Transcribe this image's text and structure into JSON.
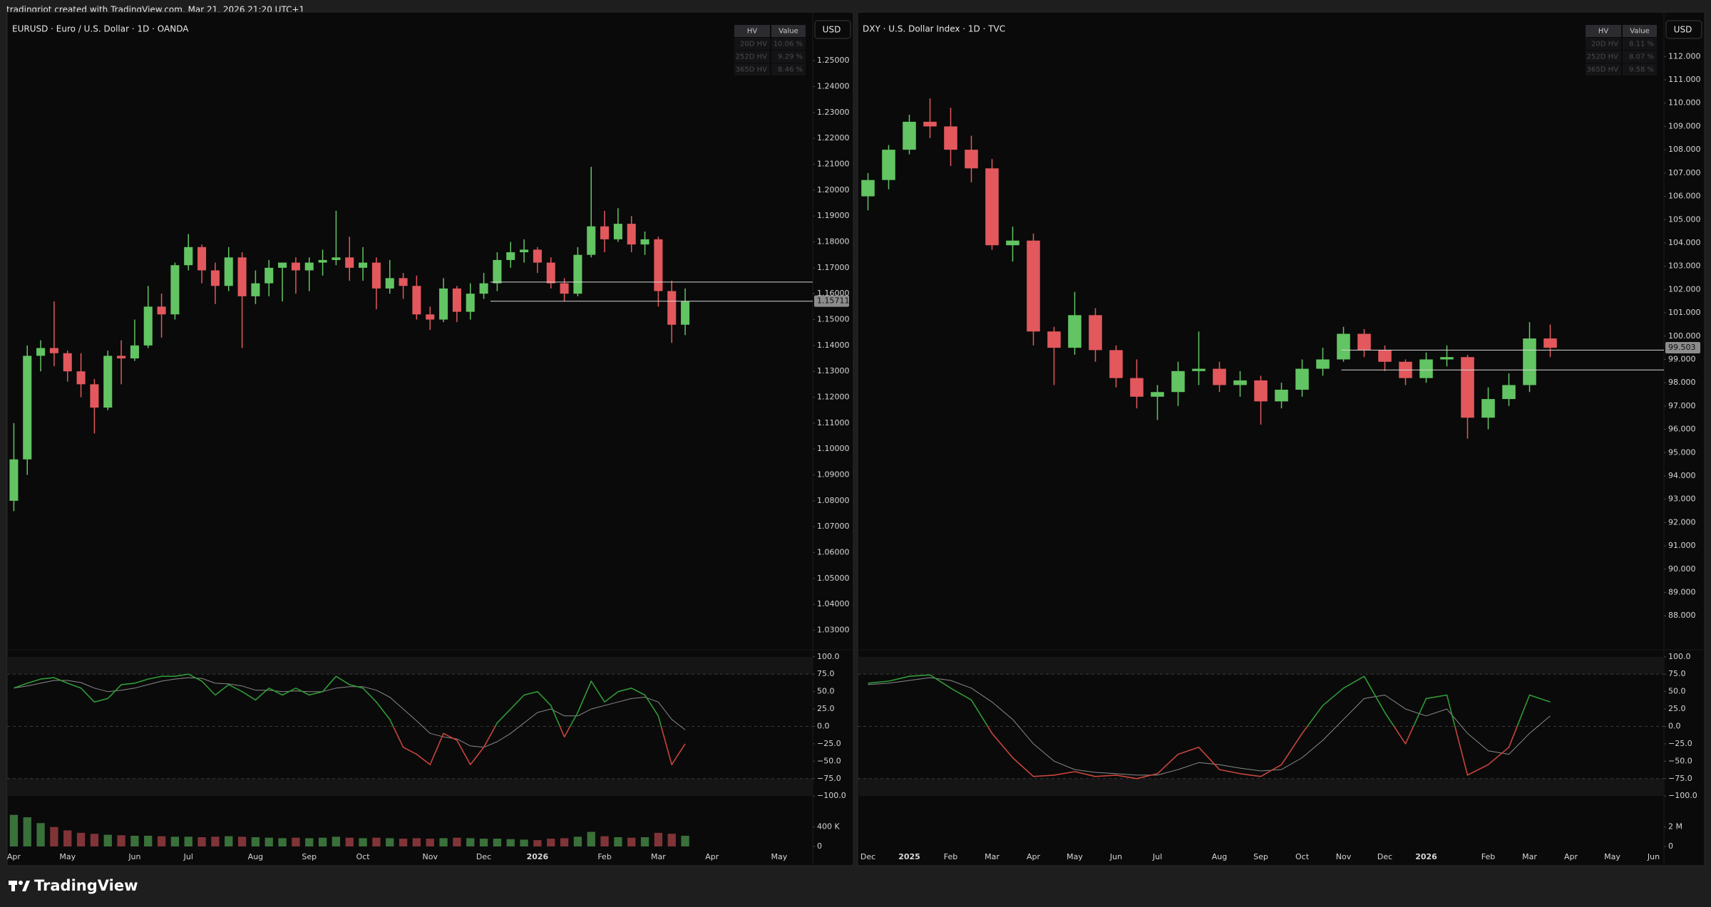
{
  "header": "tradingriot created with TradingView.com, Mar 21, 2026 21:20 UTC+1",
  "footer": "TradingView",
  "chart_data": [
    {
      "type": "candlestick",
      "title": "EURUSD · Euro / U.S. Dollar · 1D · OANDA",
      "currency": "USD",
      "hv_table": {
        "header": [
          "HV",
          "Value"
        ],
        "rows": [
          [
            "20D HV",
            "10.06 %"
          ],
          [
            "252D HV",
            "9.29 %"
          ],
          [
            "365D HV",
            "8.46 %"
          ]
        ]
      },
      "categories": [
        "Apr",
        null,
        null,
        null,
        "May",
        null,
        null,
        null,
        null,
        "Jun",
        null,
        null,
        null,
        "Jul",
        null,
        null,
        null,
        null,
        "Aug",
        null,
        null,
        null,
        "Sep",
        null,
        null,
        null,
        "Oct",
        null,
        null,
        null,
        null,
        "Nov",
        null,
        null,
        null,
        "Dec",
        null,
        null,
        null,
        "2026",
        null,
        null,
        null,
        null,
        "Feb",
        null,
        null,
        null,
        "Mar",
        null,
        null,
        null,
        "Apr",
        null,
        null,
        null,
        null,
        "May",
        null,
        null
      ],
      "open": [
        1.08,
        1.096,
        1.136,
        1.139,
        1.137,
        1.13,
        1.125,
        1.116,
        1.136,
        1.135,
        1.14,
        1.155,
        1.152,
        1.171,
        1.178,
        1.169,
        1.163,
        1.174,
        1.159,
        1.164,
        1.17,
        1.172,
        1.169,
        1.172,
        1.173,
        1.174,
        1.17,
        1.172,
        1.162,
        1.166,
        1.163,
        1.152,
        1.15,
        1.162,
        1.153,
        1.16,
        1.164,
        1.173,
        1.176,
        1.177,
        1.172,
        1.164,
        1.16,
        1.175,
        1.186,
        1.181,
        1.187,
        1.179,
        1.181,
        1.161,
        1.148,
        null,
        null,
        null,
        null,
        null,
        null,
        null,
        null,
        null
      ],
      "high": [
        1.11,
        1.14,
        1.142,
        1.157,
        1.138,
        1.137,
        1.127,
        1.138,
        1.142,
        1.15,
        1.163,
        1.16,
        1.172,
        1.183,
        1.179,
        1.172,
        1.178,
        1.176,
        1.169,
        1.173,
        1.172,
        1.174,
        1.174,
        1.177,
        1.192,
        1.182,
        1.178,
        1.174,
        1.173,
        1.168,
        1.167,
        1.155,
        1.166,
        1.163,
        1.164,
        1.168,
        1.176,
        1.18,
        1.181,
        1.178,
        1.174,
        1.166,
        1.178,
        1.209,
        1.192,
        1.193,
        1.19,
        1.184,
        1.182,
        1.165,
        1.162,
        null,
        null,
        null,
        null,
        null,
        null,
        null,
        null,
        null
      ],
      "low": [
        1.076,
        1.09,
        1.13,
        1.132,
        1.126,
        1.12,
        1.106,
        1.115,
        1.125,
        1.134,
        1.139,
        1.143,
        1.15,
        1.169,
        1.164,
        1.156,
        1.161,
        1.139,
        1.156,
        1.159,
        1.157,
        1.16,
        1.161,
        1.167,
        1.171,
        1.165,
        1.165,
        1.154,
        1.16,
        1.158,
        1.15,
        1.146,
        1.149,
        1.149,
        1.15,
        1.158,
        1.161,
        1.17,
        1.172,
        1.168,
        1.162,
        1.157,
        1.159,
        1.174,
        1.176,
        1.18,
        1.176,
        1.175,
        1.155,
        1.141,
        1.144,
        null,
        null,
        null,
        null,
        null,
        null,
        null,
        null,
        null
      ],
      "close": [
        1.096,
        1.136,
        1.139,
        1.137,
        1.13,
        1.125,
        1.116,
        1.136,
        1.135,
        1.14,
        1.155,
        1.152,
        1.171,
        1.178,
        1.169,
        1.163,
        1.174,
        1.159,
        1.164,
        1.17,
        1.172,
        1.169,
        1.172,
        1.173,
        1.174,
        1.17,
        1.172,
        1.162,
        1.166,
        1.163,
        1.152,
        1.15,
        1.162,
        1.153,
        1.16,
        1.164,
        1.173,
        1.176,
        1.177,
        1.172,
        1.164,
        1.16,
        1.175,
        1.186,
        1.181,
        1.187,
        1.179,
        1.181,
        1.161,
        1.148,
        1.157,
        null,
        null,
        null,
        null,
        null,
        null,
        null,
        null,
        null
      ],
      "up_color": "#62c462",
      "down_color": "#e2585c",
      "ylim": [
        1.023,
        1.266
      ],
      "yticks": [
        {
          "value": 1.03,
          "label": "1.03000"
        },
        {
          "value": 1.04,
          "label": "1.04000"
        },
        {
          "value": 1.05,
          "label": "1.05000"
        },
        {
          "value": 1.06,
          "label": "1.06000"
        },
        {
          "value": 1.07,
          "label": "1.07000"
        },
        {
          "value": 1.08,
          "label": "1.08000"
        },
        {
          "value": 1.09,
          "label": "1.09000"
        },
        {
          "value": 1.1,
          "label": "1.10000"
        },
        {
          "value": 1.11,
          "label": "1.11000"
        },
        {
          "value": 1.12,
          "label": "1.12000"
        },
        {
          "value": 1.13,
          "label": "1.13000"
        },
        {
          "value": 1.14,
          "label": "1.14000"
        },
        {
          "value": 1.15,
          "label": "1.15000"
        },
        {
          "value": 1.16,
          "label": "1.16000"
        },
        {
          "value": 1.17,
          "label": "1.17000"
        },
        {
          "value": 1.18,
          "label": "1.18000"
        },
        {
          "value": 1.19,
          "label": "1.19000"
        },
        {
          "value": 1.2,
          "label": "1.20000"
        },
        {
          "value": 1.21,
          "label": "1.21000"
        },
        {
          "value": 1.22,
          "label": "1.22000"
        },
        {
          "value": 1.23,
          "label": "1.23000"
        },
        {
          "value": 1.24,
          "label": "1.24000"
        },
        {
          "value": 1.25,
          "label": "1.25000"
        }
      ],
      "levels": [
        1.1645,
        1.1571
      ],
      "last_price": {
        "value": 1.15711,
        "label": "1.15711"
      },
      "oscillator": {
        "values": [
          55,
          62,
          68,
          70,
          62,
          55,
          35,
          40,
          60,
          62,
          68,
          72,
          72,
          75,
          65,
          45,
          60,
          50,
          38,
          55,
          45,
          55,
          45,
          50,
          72,
          60,
          55,
          35,
          10,
          -30,
          -40,
          -55,
          -10,
          -20,
          -55,
          -30,
          5,
          25,
          45,
          50,
          30,
          -15,
          20,
          65,
          35,
          50,
          55,
          45,
          15,
          -55,
          -25,
          null,
          null,
          null,
          null,
          null,
          null,
          null,
          null,
          null
        ],
        "signal": [
          55,
          58,
          62,
          66,
          66,
          63,
          55,
          50,
          52,
          55,
          60,
          65,
          68,
          70,
          69,
          62,
          61,
          58,
          52,
          52,
          50,
          51,
          50,
          50,
          55,
          57,
          57,
          52,
          42,
          25,
          8,
          -10,
          -15,
          -18,
          -28,
          -30,
          -22,
          -10,
          5,
          20,
          25,
          15,
          15,
          25,
          30,
          35,
          40,
          42,
          35,
          10,
          -5,
          null,
          null,
          null,
          null,
          null,
          null,
          null,
          null,
          null
        ],
        "color_positive": "#2f9a35",
        "color_negative": "#c8443c",
        "signal_color": "#8a8a8a",
        "ylim": [
          -108,
          108
        ],
        "yticks": [
          {
            "value": 100,
            "label": "100.0"
          },
          {
            "value": 75,
            "label": "75.0"
          },
          {
            "value": 50,
            "label": "50.0"
          },
          {
            "value": 25,
            "label": "25.0"
          },
          {
            "value": 0,
            "label": "0.0"
          },
          {
            "value": -25,
            "label": "−25.0"
          },
          {
            "value": -50,
            "label": "−50.0"
          },
          {
            "value": -75,
            "label": "−75.0"
          },
          {
            "value": -100,
            "label": "−100.0"
          }
        ],
        "bands": [
          [
            75,
            100
          ],
          [
            -100,
            -75
          ]
        ],
        "reference_lines": [
          75,
          0,
          -75
        ]
      },
      "volume": {
        "values": [
          650000,
          600000,
          480000,
          400000,
          330000,
          280000,
          260000,
          240000,
          230000,
          220000,
          220000,
          210000,
          200000,
          200000,
          190000,
          200000,
          210000,
          200000,
          190000,
          180000,
          170000,
          180000,
          170000,
          180000,
          200000,
          180000,
          170000,
          180000,
          170000,
          160000,
          170000,
          160000,
          170000,
          180000,
          170000,
          160000,
          160000,
          150000,
          140000,
          130000,
          160000,
          170000,
          200000,
          300000,
          210000,
          190000,
          180000,
          190000,
          280000,
          260000,
          220000,
          null,
          null,
          null,
          null,
          null,
          null,
          null,
          null,
          null
        ],
        "ylim": [
          0,
          850000
        ],
        "yticks": [
          {
            "value": 400000,
            "label": "400 K"
          },
          0
        ]
      }
    },
    {
      "type": "candlestick",
      "title": "DXY · U.S. Dollar Index · 1D · TVC",
      "currency": "USD",
      "hv_table": {
        "header": [
          "HV",
          "Value"
        ],
        "rows": [
          [
            "20D HV",
            "8.11 %"
          ],
          [
            "252D HV",
            "8.07 %"
          ],
          [
            "365D HV",
            "9.58 %"
          ]
        ]
      },
      "categories": [
        "Dec",
        null,
        "2025",
        null,
        "Feb",
        null,
        "Mar",
        null,
        "Apr",
        null,
        "May",
        null,
        "Jun",
        null,
        "Jul",
        null,
        null,
        "Aug",
        null,
        "Sep",
        null,
        "Oct",
        null,
        "Nov",
        null,
        "Dec",
        null,
        "2026",
        null,
        null,
        "Feb",
        null,
        "Mar",
        null,
        "Apr",
        null,
        "May",
        null,
        "Jun"
      ],
      "open": [
        106.0,
        106.7,
        108.0,
        109.2,
        109.0,
        108.0,
        107.2,
        103.9,
        104.1,
        100.2,
        99.5,
        100.9,
        99.4,
        98.2,
        97.4,
        97.6,
        98.5,
        98.6,
        97.9,
        98.1,
        97.2,
        97.7,
        98.6,
        99.0,
        100.1,
        99.4,
        98.9,
        98.2,
        99.0,
        99.1,
        96.5,
        97.3,
        97.9,
        99.9,
        null,
        null,
        null,
        null,
        null
      ],
      "high": [
        107.0,
        108.2,
        109.5,
        110.2,
        109.8,
        108.6,
        107.6,
        104.7,
        104.4,
        100.4,
        101.9,
        101.2,
        99.6,
        99.0,
        97.9,
        98.9,
        100.2,
        98.9,
        98.5,
        98.3,
        98.0,
        99.0,
        99.5,
        100.4,
        100.3,
        99.6,
        99.0,
        99.3,
        99.6,
        99.2,
        97.8,
        98.4,
        100.6,
        100.5,
        null,
        null,
        null,
        null,
        null
      ],
      "low": [
        105.4,
        106.3,
        107.8,
        108.5,
        107.3,
        106.6,
        103.7,
        103.2,
        99.6,
        97.9,
        99.2,
        98.9,
        97.8,
        96.9,
        96.4,
        97.0,
        97.9,
        97.6,
        97.4,
        96.2,
        96.9,
        97.4,
        98.3,
        98.9,
        99.1,
        98.5,
        97.9,
        98.0,
        98.7,
        95.6,
        96.0,
        97.0,
        97.6,
        99.1,
        null,
        null,
        null,
        null,
        null
      ],
      "close": [
        106.7,
        108.0,
        109.2,
        109.0,
        108.0,
        107.2,
        103.9,
        104.1,
        100.2,
        99.5,
        100.9,
        99.4,
        98.2,
        97.4,
        97.6,
        98.5,
        98.6,
        97.9,
        98.1,
        97.2,
        97.7,
        98.6,
        99.0,
        100.1,
        99.4,
        98.9,
        98.2,
        99.0,
        99.1,
        96.5,
        97.3,
        97.9,
        99.9,
        99.5,
        null,
        null,
        null,
        null,
        null
      ],
      "up_color": "#62c462",
      "down_color": "#e2585c",
      "ylim": [
        86.6,
        113.6
      ],
      "yticks": [
        {
          "value": 88,
          "label": "88.000"
        },
        {
          "value": 89,
          "label": "89.000"
        },
        {
          "value": 90,
          "label": "90.000"
        },
        {
          "value": 91,
          "label": "91.000"
        },
        {
          "value": 92,
          "label": "92.000"
        },
        {
          "value": 93,
          "label": "93.000"
        },
        {
          "value": 94,
          "label": "94.000"
        },
        {
          "value": 95,
          "label": "95.000"
        },
        {
          "value": 96,
          "label": "96.000"
        },
        {
          "value": 97,
          "label": "97.000"
        },
        {
          "value": 98,
          "label": "98.000"
        },
        {
          "value": 99,
          "label": "99.000"
        },
        {
          "value": 100,
          "label": "100.000"
        },
        {
          "value": 101,
          "label": "101.000"
        },
        {
          "value": 102,
          "label": "102.000"
        },
        {
          "value": 103,
          "label": "103.000"
        },
        {
          "value": 104,
          "label": "104.000"
        },
        {
          "value": 105,
          "label": "105.000"
        },
        {
          "value": 106,
          "label": "106.000"
        },
        {
          "value": 107,
          "label": "107.000"
        },
        {
          "value": 108,
          "label": "108.000"
        },
        {
          "value": 109,
          "label": "109.000"
        },
        {
          "value": 110,
          "label": "110.000"
        },
        {
          "value": 111,
          "label": "111.000"
        },
        {
          "value": 112,
          "label": "112.000"
        }
      ],
      "levels": [
        99.4,
        98.55
      ],
      "last_price": {
        "value": 99.503,
        "label": "99.503"
      },
      "oscillator": {
        "values": [
          62,
          65,
          72,
          74,
          55,
          38,
          -10,
          -45,
          -72,
          -70,
          -65,
          -72,
          -70,
          -75,
          -68,
          -40,
          -30,
          -62,
          -68,
          -72,
          -55,
          -10,
          30,
          55,
          72,
          20,
          -25,
          40,
          45,
          -70,
          -55,
          -30,
          45,
          35,
          null,
          null,
          null,
          null,
          null
        ],
        "signal": [
          60,
          62,
          66,
          70,
          66,
          55,
          35,
          10,
          -25,
          -50,
          -62,
          -66,
          -68,
          -70,
          -70,
          -62,
          -52,
          -55,
          -60,
          -64,
          -62,
          -45,
          -20,
          10,
          40,
          45,
          25,
          15,
          25,
          -10,
          -35,
          -40,
          -10,
          15,
          null,
          null,
          null,
          null,
          null
        ],
        "color_positive": "#2f9a35",
        "color_negative": "#c8443c",
        "signal_color": "#8a8a8a",
        "ylim": [
          -108,
          108
        ],
        "yticks": [
          {
            "value": 100,
            "label": "100.0"
          },
          {
            "value": 75,
            "label": "75.0"
          },
          {
            "value": 50,
            "label": "50.0"
          },
          {
            "value": 25,
            "label": "25.0"
          },
          {
            "value": 0,
            "label": "0.0"
          },
          {
            "value": -25,
            "label": "−25.0"
          },
          {
            "value": -50,
            "label": "−50.0"
          },
          {
            "value": -75,
            "label": "−75.0"
          },
          {
            "value": -100,
            "label": "−100.0"
          }
        ],
        "bands": [
          [
            75,
            100
          ],
          [
            -100,
            -75
          ]
        ],
        "reference_lines": [
          75,
          0,
          -75
        ]
      },
      "volume": {
        "ylim": [
          0,
          4250000
        ],
        "yticks": [
          {
            "value": 2000000,
            "label": "2 M"
          },
          0
        ]
      }
    }
  ]
}
